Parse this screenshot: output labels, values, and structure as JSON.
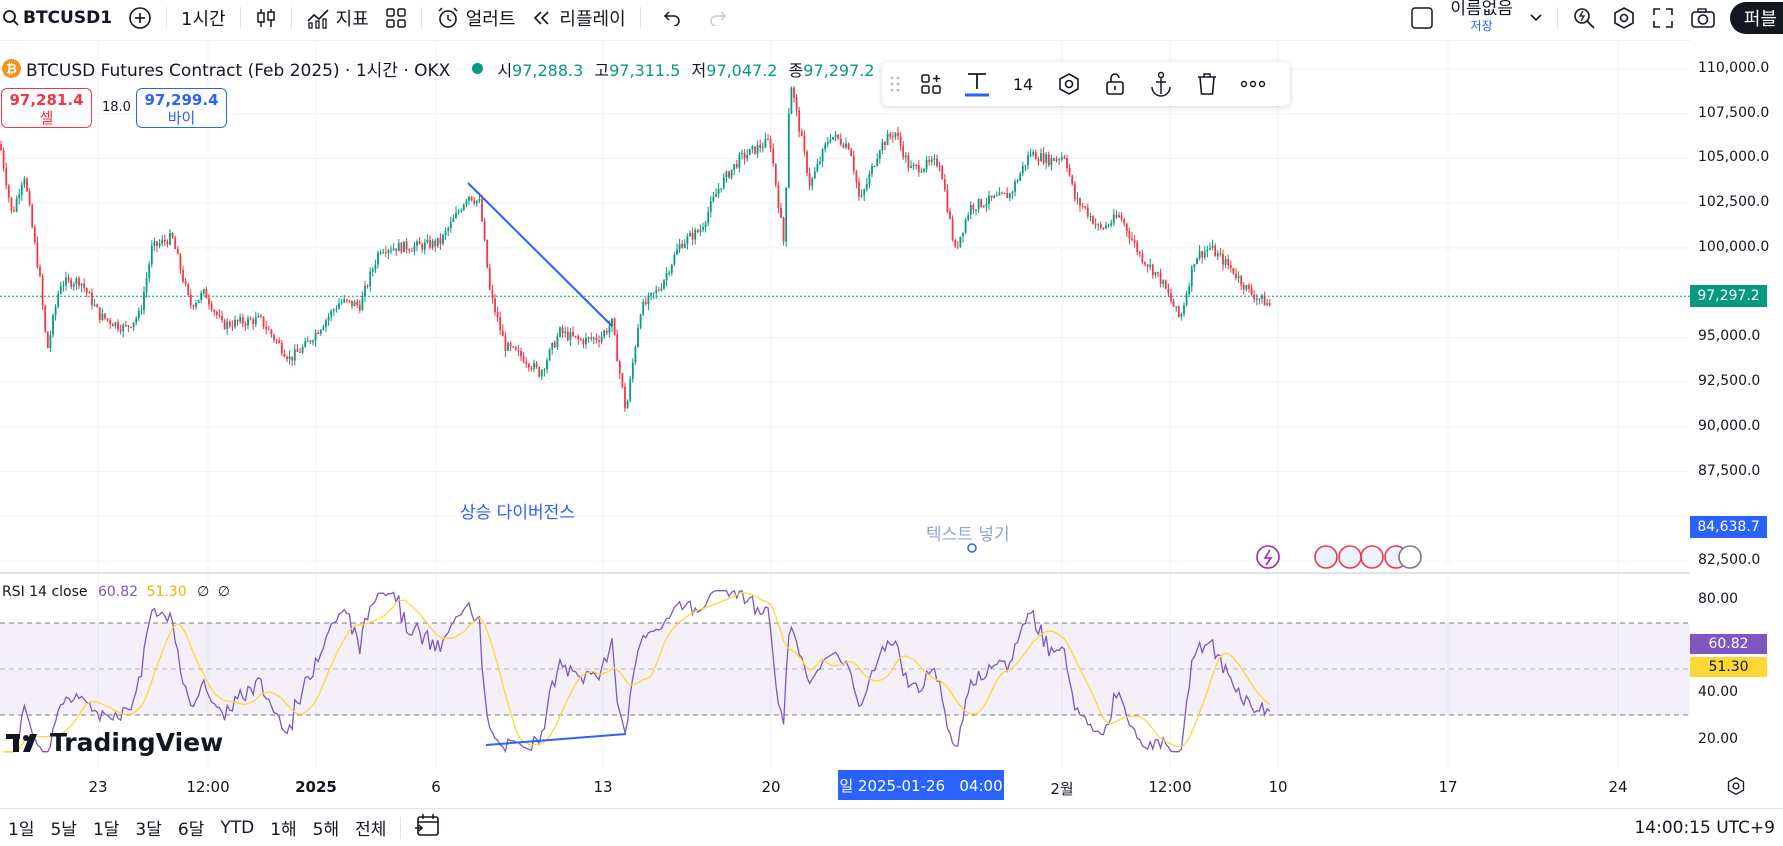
{
  "toolbar": {
    "symbol": "BTCUSD1",
    "interval": "1시간",
    "indicators": "지표",
    "alert": "얼러트",
    "replay": "리플레이",
    "layout_name": "이름없음",
    "layout_save": "저장",
    "publish": "퍼블"
  },
  "legend": {
    "title": "BTCUSD Futures Contract (Feb 2025) · 1시간 · OKX",
    "open_label": "시",
    "open": "97,288.3",
    "high_label": "고",
    "high": "97,311.5",
    "low_label": "저",
    "low": "97,047.2",
    "close_label": "종",
    "close": "97,297.2"
  },
  "trade": {
    "sell_price": "97,281.4",
    "sell_label": "셀",
    "spread": "18.0",
    "buy_price": "97,299.4",
    "buy_label": "바이"
  },
  "drawing_toolbar": {
    "font_size": "14"
  },
  "annotations": {
    "divergence_text": "상승 다이버전스",
    "text_placeholder": "텍스트 넣기"
  },
  "price_axis": {
    "labels": [
      "110,000.0",
      "107,500.0",
      "105,000.0",
      "102,500.0",
      "100,000.0",
      "95,000.0",
      "92,500.0",
      "90,000.0",
      "87,500.0",
      "82,500.0"
    ],
    "current_price": "97,297.2",
    "cursor_price": "84,638.7",
    "rsi_labels": [
      "80.00",
      "40.00",
      "20.00"
    ],
    "rsi_value": "60.82",
    "rsi_ma_value": "51.30"
  },
  "rsi": {
    "name": "RSI 14 close",
    "value": "60.82",
    "ma": "51.30",
    "n1": "∅",
    "n2": "∅"
  },
  "time_axis": {
    "labels": [
      "23",
      "12:00",
      "2025",
      "6",
      "13",
      "20",
      "2월",
      "12:00",
      "10",
      "17",
      "24"
    ],
    "cursor_date": "일 2025-01-26   04:00"
  },
  "bottom": {
    "ranges": [
      "1일",
      "5날",
      "1달",
      "3달",
      "6달",
      "YTD",
      "1해",
      "5해",
      "전체"
    ],
    "clock": "14:00:15 UTC+9"
  },
  "logo": "TradingView",
  "colors": {
    "up": "#089981",
    "down": "#f23645",
    "rsi": "#7e57c2",
    "rsi_ma": "#fdd835",
    "drawing": "#2962ff"
  }
}
